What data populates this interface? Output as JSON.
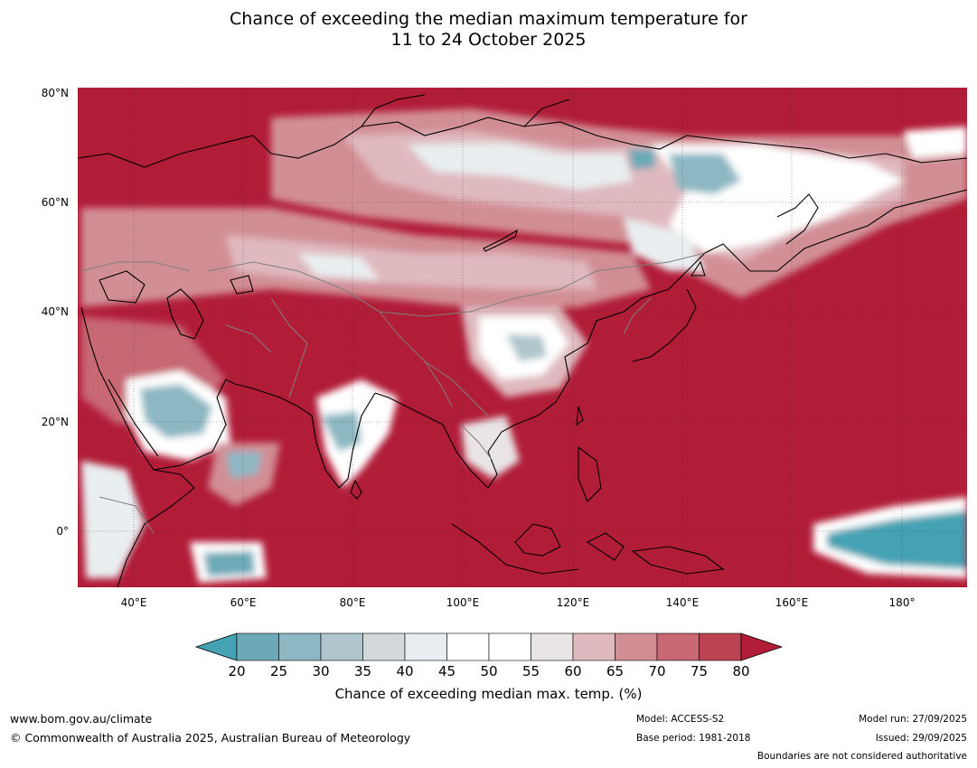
{
  "title": {
    "line1": "Chance of exceeding the median maximum temperature for",
    "line2": "11 to 24 October 2025"
  },
  "map": {
    "lat_labels": [
      "80°N",
      "60°N",
      "40°N",
      "20°N",
      "0°"
    ],
    "lon_labels": [
      "40°E",
      "60°E",
      "80°E",
      "100°E",
      "120°E",
      "140°E",
      "160°E",
      "180°"
    ],
    "background_color": "#b11c37",
    "coastline_color": "#000000",
    "border_color": "#808080"
  },
  "colorbar": {
    "ticks": [
      "20",
      "25",
      "30",
      "35",
      "40",
      "45",
      "50",
      "55",
      "60",
      "65",
      "70",
      "75",
      "80"
    ],
    "colors": [
      "#6ca9b7",
      "#8cb7c3",
      "#aec5cc",
      "#d3d8db",
      "#e9eef0",
      "#ffffff",
      "#ffffff",
      "#e9e4e6",
      "#dfb9be",
      "#d28e95",
      "#c76873",
      "#bc4352"
    ],
    "under_color": "#44a2b2",
    "over_color": "#b11c37",
    "label": "Chance of exceeding median max. temp. (%)"
  },
  "footer": {
    "url": "www.bom.gov.au/climate",
    "copyright": "© Commonwealth of Australia 2025, Australian Bureau of Meteorology",
    "model": "Model: ACCESS-S2",
    "base_period": "Base period: 1981-2018",
    "model_run": "Model run: 27/09/2025",
    "issued": "Issued: 29/09/2025",
    "disclaimer": "Boundaries are not considered authoritative"
  }
}
